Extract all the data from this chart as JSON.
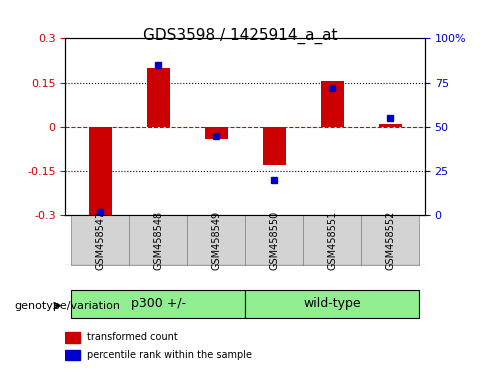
{
  "title": "GDS3598 / 1425914_a_at",
  "samples": [
    "GSM458547",
    "GSM458548",
    "GSM458549",
    "GSM458550",
    "GSM458551",
    "GSM458552"
  ],
  "transformed_count": [
    -0.305,
    0.2,
    -0.04,
    -0.13,
    0.155,
    0.008
  ],
  "percentile_rank": [
    2.0,
    85.0,
    45.0,
    20.0,
    72.0,
    55.0
  ],
  "groups": [
    {
      "label": "p300 +/-",
      "indices": [
        0,
        1,
        2
      ],
      "color": "#90EE90"
    },
    {
      "label": "wild-type",
      "indices": [
        3,
        4,
        5
      ],
      "color": "#90EE90"
    }
  ],
  "group_colors": [
    "#90EE90",
    "#90EE90"
  ],
  "ylim_left": [
    -0.3,
    0.3
  ],
  "ylim_right": [
    0,
    100
  ],
  "yticks_left": [
    -0.3,
    -0.15,
    0,
    0.15,
    0.3
  ],
  "ytick_labels_left": [
    "-0.3",
    "-0.15",
    "0",
    "0.15",
    "0.3"
  ],
  "yticks_right": [
    0,
    25,
    50,
    75,
    100
  ],
  "ytick_labels_right": [
    "0",
    "25",
    "50",
    "75",
    "100%"
  ],
  "bar_color": "#CC0000",
  "dot_color": "#0000CC",
  "zero_line_color": "#CC0000",
  "grid_color": "black",
  "bar_width": 0.4,
  "legend_items": [
    {
      "label": "transformed count",
      "color": "#CC0000"
    },
    {
      "label": "percentile rank within the sample",
      "color": "#0000CC"
    }
  ],
  "genotype_label": "genotype/variation",
  "group1_label": "p300 +/-",
  "group2_label": "wild-type",
  "group1_indices": [
    0,
    1,
    2
  ],
  "group2_indices": [
    3,
    4,
    5
  ]
}
